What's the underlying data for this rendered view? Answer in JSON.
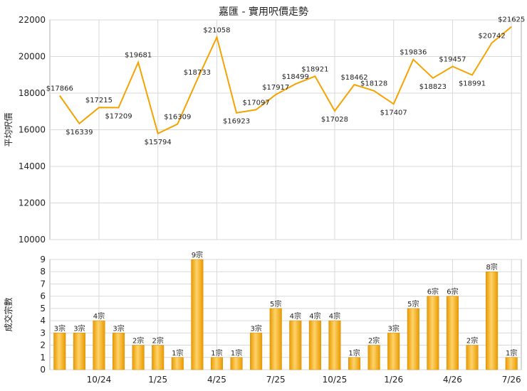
{
  "title": "嘉匯 - 實用呎價走勢",
  "chart_data": [
    {
      "type": "line",
      "ylabel": "平均呎價",
      "ylim": [
        10000,
        22000
      ],
      "yticks": [
        10000,
        12000,
        14000,
        16000,
        18000,
        20000,
        22000
      ],
      "line_color": "#f5a300",
      "grid": true,
      "values": [
        17866,
        16339,
        17215,
        17209,
        19681,
        15794,
        16309,
        18733,
        21058,
        16923,
        17097,
        17917,
        18499,
        18921,
        17028,
        18462,
        18128,
        17407,
        19836,
        18823,
        19457,
        18991,
        20742,
        21625
      ],
      "labels": [
        "$17866",
        "$16339",
        "$17215",
        "$17209",
        "$19681",
        "$15794",
        "$16309",
        "$18733",
        "$21058",
        "$16923",
        "$17097",
        "$17917",
        "$18499",
        "$18921",
        "$17028",
        "$18462",
        "$18128",
        "$17407",
        "$19836",
        "$18823",
        "$19457",
        "$18991",
        "$20742",
        "$21625"
      ]
    },
    {
      "type": "bar",
      "ylabel": "成交宗數",
      "ylim": [
        0,
        9
      ],
      "yticks": [
        0,
        1,
        2,
        3,
        4,
        5,
        6,
        7,
        8,
        9
      ],
      "bar_color": "#f5a300",
      "grid": true,
      "values": [
        3,
        3,
        4,
        3,
        2,
        2,
        1,
        9,
        1,
        1,
        3,
        5,
        4,
        4,
        4,
        1,
        2,
        3,
        5,
        6,
        6,
        2,
        8,
        1
      ],
      "labels": [
        "3宗",
        "3宗",
        "4宗",
        "3宗",
        "2宗",
        "2宗",
        "1宗",
        "9宗",
        "1宗",
        "1宗",
        "3宗",
        "5宗",
        "4宗",
        "4宗",
        "4宗",
        "1宗",
        "2宗",
        "3宗",
        "5宗",
        "6宗",
        "6宗",
        "2宗",
        "8宗",
        "1宗"
      ],
      "xticks": [
        "10/24",
        "1/25",
        "4/25",
        "7/25",
        "10/25",
        "1/26",
        "4/26",
        "7/26"
      ]
    }
  ]
}
